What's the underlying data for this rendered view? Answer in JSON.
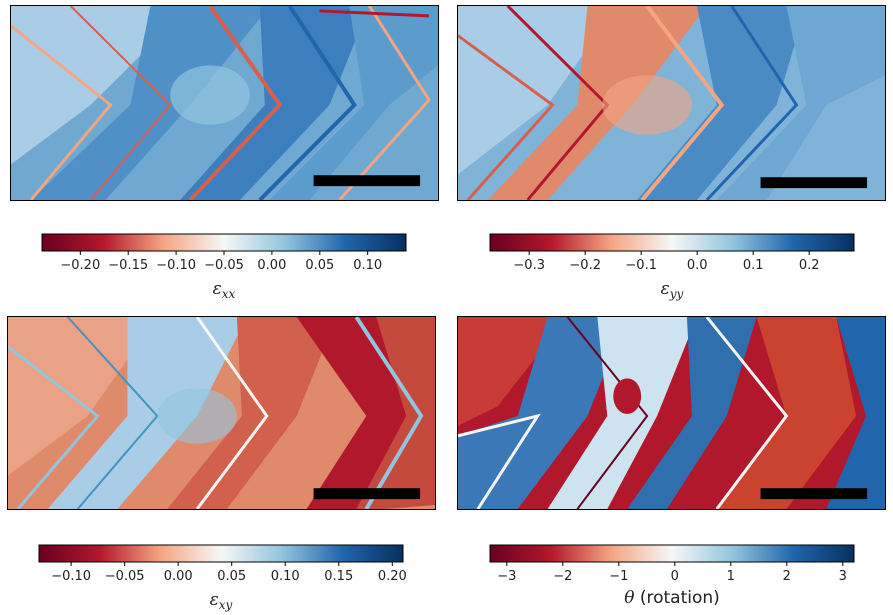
{
  "chart_data": [
    {
      "type": "heatmap",
      "quantity": "ε_xx",
      "colorbar": {
        "label_symbol": "ε",
        "label_subscript": "xx",
        "range": [
          -0.24,
          0.14
        ],
        "ticks": [
          -0.2,
          -0.15,
          -0.1,
          -0.05,
          0.0,
          0.05,
          0.1
        ],
        "tick_labels": [
          "−0.20",
          "−0.15",
          "−0.10",
          "−0.05",
          "0.00",
          "0.05",
          "0.10"
        ],
        "colormap": "RdBu"
      },
      "scale_bar": true
    },
    {
      "type": "heatmap",
      "quantity": "ε_yy",
      "colorbar": {
        "label_symbol": "ε",
        "label_subscript": "yy",
        "range": [
          -0.37,
          0.28
        ],
        "ticks": [
          -0.3,
          -0.2,
          -0.1,
          0.0,
          0.1,
          0.2
        ],
        "tick_labels": [
          "−0.3",
          "−0.2",
          "−0.1",
          "0.0",
          "0.1",
          "0.2"
        ],
        "colormap": "RdBu"
      },
      "scale_bar": true
    },
    {
      "type": "heatmap",
      "quantity": "ε_xy",
      "colorbar": {
        "label_symbol": "ε",
        "label_subscript": "xy",
        "range": [
          -0.13,
          0.21
        ],
        "ticks": [
          -0.1,
          -0.05,
          0.0,
          0.05,
          0.1,
          0.15,
          0.2
        ],
        "tick_labels": [
          "−0.10",
          "−0.05",
          "0.00",
          "0.05",
          "0.10",
          "0.15",
          "0.20"
        ],
        "colormap": "RdBu"
      },
      "scale_bar": true
    },
    {
      "type": "heatmap",
      "quantity": "θ (rotation)",
      "colorbar": {
        "label_symbol": "θ",
        "label_text": " (rotation)",
        "range": [
          -3.3,
          3.2
        ],
        "ticks": [
          -3,
          -2,
          -1,
          0,
          1,
          2,
          3
        ],
        "tick_labels": [
          "−3",
          "−2",
          "−1",
          "0",
          "1",
          "2",
          "3"
        ],
        "colormap": "RdBu"
      },
      "scale_bar": true
    }
  ],
  "colors": {
    "deep_red": "#67001f",
    "red": "#b2182b",
    "light_red": "#f4a582",
    "white": "#f7f7f7",
    "light_blue": "#92c5de",
    "blue": "#2166ac",
    "deep_blue": "#053061",
    "scale_bar": "#000000"
  }
}
